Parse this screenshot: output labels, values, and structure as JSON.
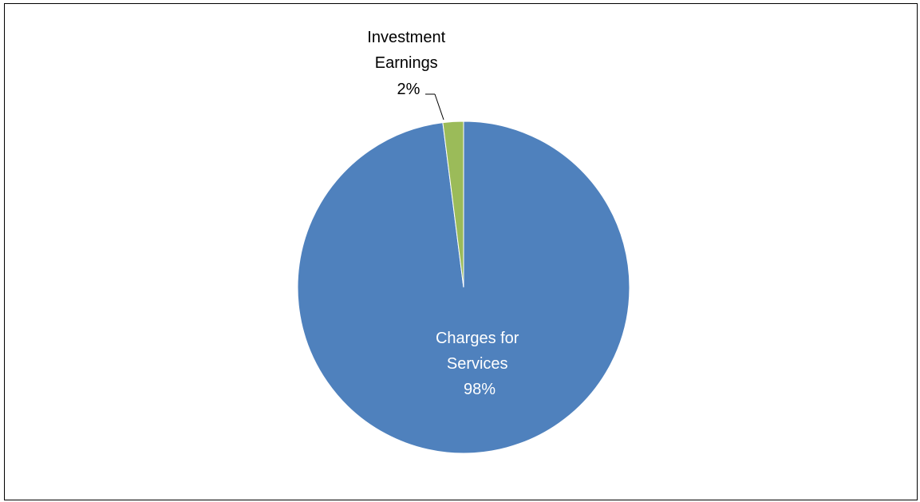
{
  "chart_data": {
    "type": "pie",
    "title": "",
    "slices": [
      {
        "label_lines": [
          "Charges for",
          "Services"
        ],
        "percent_label": "98%",
        "value": 98,
        "color": "#4F81BD"
      },
      {
        "label_lines": [
          "Investment",
          "Earnings"
        ],
        "percent_label": "2%",
        "value": 2,
        "color": "#9BBB59"
      }
    ],
    "legend": "none"
  }
}
